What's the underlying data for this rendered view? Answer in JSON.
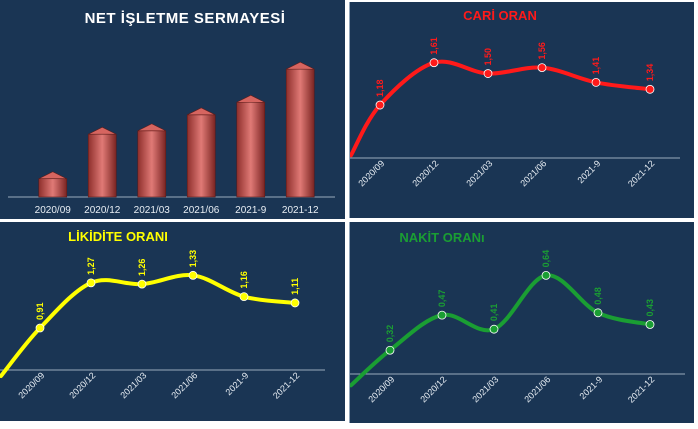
{
  "colors": {
    "panel_bg": "#1a3554",
    "bar": "#c0504d",
    "cari": "#ff1a1a",
    "likidite": "#ffff00",
    "nakit": "#1a9e33",
    "title_white": "#ffffff"
  },
  "chart_data": [
    {
      "type": "bar",
      "title": "NET İŞLETME SERMAYESİ",
      "categories": [
        "2020/09",
        "2020/12",
        "2021/03",
        "2021/06",
        "2021-9",
        "2021-12"
      ],
      "values": [
        16,
        55,
        58,
        72,
        83,
        112
      ],
      "ylim": [
        0,
        120
      ],
      "grid": false,
      "legend": "none"
    },
    {
      "type": "line",
      "title": "CARİ ORAN",
      "categories": [
        "2020/09",
        "2020/12",
        "2021/03",
        "2021/06",
        "2021-9",
        "2021-12"
      ],
      "values": [
        1.18,
        1.61,
        1.5,
        1.56,
        1.41,
        1.34
      ],
      "value_labels": [
        "1,18",
        "1,61",
        "1,50",
        "1,56",
        "1,41",
        "1,34"
      ],
      "ylim": [
        0.5,
        1.8
      ]
    },
    {
      "type": "line",
      "title": "LİKİDİTE ORANI",
      "categories": [
        "2020/09",
        "2020/12",
        "2021/03",
        "2021/06",
        "2021-9",
        "2021-12"
      ],
      "values": [
        0.91,
        1.27,
        1.26,
        1.33,
        1.16,
        1.11
      ],
      "value_labels": [
        "0,91",
        "1,27",
        "1,26",
        "1,33",
        "1,16",
        "1,11"
      ],
      "ylim": [
        0.4,
        1.5
      ]
    },
    {
      "type": "line",
      "title": "NAKİT ORANı",
      "categories": [
        "2020/09",
        "2020/12",
        "2021/03",
        "2021/06",
        "2021-9",
        "2021-12"
      ],
      "values": [
        0.32,
        0.47,
        0.41,
        0.64,
        0.48,
        0.43
      ],
      "value_labels": [
        "0,32",
        "0,47",
        "0,41",
        "0,64",
        "0,48",
        "0,43"
      ],
      "ylim": [
        0.12,
        0.74
      ]
    }
  ]
}
